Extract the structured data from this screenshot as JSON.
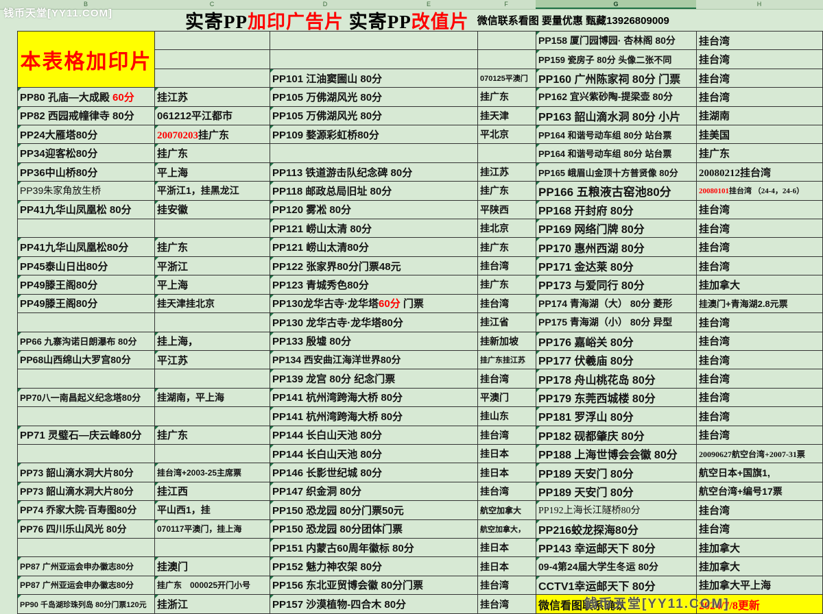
{
  "watermark": "钱币天堂[YY11.COM]",
  "header": {
    "columns": [
      "B",
      "C",
      "D",
      "E",
      "F",
      "G",
      "H"
    ],
    "selected": "G"
  },
  "title": {
    "parts": [
      {
        "t": "实寄PP"
      },
      {
        "t": "加印广告片",
        "c": "red"
      },
      {
        "t": "  实寄PP"
      },
      {
        "t": "改值片",
        "c": "red"
      }
    ],
    "subtitle": "微信联系看图  要量优惠  甄藏13926809009"
  },
  "table": {
    "rows": [
      {
        "b": {
          "t": "本表格加印片",
          "cls": "merged-title",
          "rs": 3
        },
        "c": {},
        "de": {},
        "f": {},
        "g": {
          "t": "PP158 厦门园博园· 杏林阁 80分",
          "cls": "f14"
        },
        "h": {
          "t": "挂台湾"
        }
      },
      {
        "b": "skip",
        "c": {},
        "de": {},
        "f": {},
        "g": {
          "t": "PP159 瓷房子 80分 头像二张不同",
          "cls": "f13"
        },
        "h": {
          "t": "挂台湾"
        }
      },
      {
        "b": "skip",
        "c": {},
        "de": {
          "t": "PP101 江油窦圌山 80分"
        },
        "f": {
          "t": "070125平澳门",
          "cls": "f11"
        },
        "g": {
          "t": "PP160 广州陈家祠 80分 门票"
        },
        "h": {
          "t": "挂台湾"
        }
      },
      {
        "b": {
          "p": [
            {
              "t": "PP80 孔庙—大成殿 "
            },
            {
              "t": "60分",
              "c": "red"
            }
          ]
        },
        "c": {
          "t": "挂江苏"
        },
        "de": {
          "t": "PP105 万佛湖风光  80分"
        },
        "f": {
          "t": "挂广东"
        },
        "g": {
          "t": "PP162 宜兴紫砂陶-提梁壶 80分",
          "cls": "f14"
        },
        "h": {
          "t": "挂台湾"
        }
      },
      {
        "b": {
          "t": "PP82 西园戒幢律寺 80分"
        },
        "c": {
          "t": "061212平江都市"
        },
        "de": {
          "t": "PP105 万佛湖风光 80分"
        },
        "f": {
          "t": "挂天津"
        },
        "g": {
          "t": "PP163 韶山滴水洞 80分 小片"
        },
        "h": {
          "t": "挂湖南"
        }
      },
      {
        "b": {
          "t": "PP24大雁塔80分"
        },
        "c": {
          "p": [
            {
              "t": "20070203",
              "c": "red"
            },
            {
              "t": "挂广东"
            }
          ],
          "cls": "serif"
        },
        "de": {
          "t": "PP109 婺源彩虹桥80分"
        },
        "f": {
          "t": "平北京"
        },
        "g": {
          "t": "PP164 和谐号动车组 80分 站台票",
          "cls": "f13"
        },
        "h": {
          "t": "挂美国"
        }
      },
      {
        "b": {
          "t": "PP34迎客松80分"
        },
        "c": {
          "t": "挂广东"
        },
        "de": {},
        "f": {},
        "g": {
          "t": "PP164 和谐号动车组 80分 站台票",
          "cls": "f13"
        },
        "h": {
          "t": "挂广东"
        }
      },
      {
        "b": {
          "t": "PP36中山桥80分"
        },
        "c": {
          "t": "平上海"
        },
        "de": {
          "t": "PP113 铁道游击队纪念碑 80分"
        },
        "f": {
          "t": "挂江苏"
        },
        "g": {
          "t": "PP165 峨眉山金顶十方普贤像 80分",
          "cls": "f13"
        },
        "h": {
          "t": "20080212挂台湾",
          "cls": "serif f15"
        }
      },
      {
        "b": {
          "t": "PP39朱家角放生桥",
          "cls": "f14 normal"
        },
        "c": {
          "t": "平浙江1，挂黑龙江",
          "cls": "f14"
        },
        "de": {
          "t": "PP118 邮政总局旧址 80分"
        },
        "f": {
          "t": "挂广东"
        },
        "g": {
          "t": "PP166 五粮液古窑池80分",
          "cls": "f17"
        },
        "h": {
          "p": [
            {
              "t": "20080101",
              "c": "red"
            },
            {
              "t": "挂台湾 （24-4，24-6）"
            }
          ],
          "cls": "f11 serif"
        }
      },
      {
        "b": {
          "t": "PP41九华山凤凰松 80分"
        },
        "c": {
          "t": "挂安徽"
        },
        "de": {
          "t": "PP120 雾凇 80分"
        },
        "f": {
          "t": "平陕西"
        },
        "g": {
          "t": "PP168 开封府 80分"
        },
        "h": {
          "t": "挂台湾"
        }
      },
      {
        "b": {},
        "c": {},
        "de": {
          "t": "PP121 崂山太清 80分"
        },
        "f": {
          "t": "挂北京"
        },
        "g": {
          "t": "PP169 网络门牌 80分"
        },
        "h": {
          "t": "挂台湾"
        }
      },
      {
        "b": {
          "t": "PP41九华山凤凰松80分"
        },
        "c": {
          "t": "挂广东"
        },
        "de": {
          "t": "PP121 崂山太清80分"
        },
        "f": {
          "t": "挂广东"
        },
        "g": {
          "t": "PP170 惠州西湖 80分"
        },
        "h": {
          "t": "挂台湾"
        }
      },
      {
        "b": {
          "t": "PP45泰山日出80分"
        },
        "c": {
          "t": "平浙江"
        },
        "de": {
          "t": "PP122 张家界80分门票48元"
        },
        "f": {
          "t": "挂台湾"
        },
        "g": {
          "t": "PP171 金达莱 80分"
        },
        "h": {
          "t": "挂台湾"
        }
      },
      {
        "b": {
          "t": "PP49滕王阁80分"
        },
        "c": {
          "t": "平上海"
        },
        "de": {
          "t": "PP123 青城秀色80分"
        },
        "f": {
          "t": "挂广东"
        },
        "g": {
          "t": "PP173 与爱同行 80分"
        },
        "h": {
          "t": "挂加拿大"
        }
      },
      {
        "b": {
          "t": "PP49滕王阁80分"
        },
        "c": {
          "t": "挂天津挂北京",
          "cls": "f14"
        },
        "de": {
          "p": [
            {
              "t": "PP130龙华古寺·龙华塔"
            },
            {
              "t": "60分",
              "c": "red"
            },
            {
              "t": " 门票"
            }
          ]
        },
        "f": {
          "t": "挂台湾"
        },
        "g": {
          "t": "PP174 青海湖（大） 80分 菱形",
          "cls": "f14"
        },
        "h": {
          "t": "挂澳门+青海湖2.8元票",
          "cls": "f13"
        }
      },
      {
        "b": {},
        "c": {},
        "de": {
          "t": "PP130 龙华古寺·龙华塔80分"
        },
        "f": {
          "t": "挂江省"
        },
        "g": {
          "t": "PP175 青海湖（小） 80分 异型",
          "cls": "f14"
        },
        "h": {
          "t": "挂台湾"
        }
      },
      {
        "b": {
          "t": "PP66 九寨沟诺日朗瀑布 80分",
          "cls": "f13"
        },
        "c": {
          "t": "挂上海，"
        },
        "de": {
          "t": "PP133 殷墟 80分"
        },
        "f": {
          "t": "挂新加坡"
        },
        "g": {
          "t": "PP176 嘉峪关 80分"
        },
        "h": {
          "t": "挂台湾"
        }
      },
      {
        "b": {
          "t": "PP68山西绵山大罗宫80分",
          "cls": "f14"
        },
        "c": {
          "t": "平江苏"
        },
        "de": {
          "t": "PP134 西安曲江海洋世界80分",
          "cls": "f14"
        },
        "f": {
          "t": "挂广东挂江苏",
          "cls": "f11"
        },
        "g": {
          "t": "PP177 伏羲庙 80分"
        },
        "h": {
          "t": "挂台湾"
        }
      },
      {
        "b": {},
        "c": {},
        "de": {
          "t": "PP139 龙宫 80分 纪念门票"
        },
        "f": {
          "t": "挂台湾"
        },
        "g": {
          "t": "PP178 舟山桃花岛 80分"
        },
        "h": {
          "t": "挂台湾"
        }
      },
      {
        "b": {
          "t": "PP70八一南昌起义纪念塔80分",
          "cls": "f13"
        },
        "c": {
          "t": "挂湖南，平上海",
          "cls": "f14"
        },
        "de": {
          "t": "PP141 杭州湾跨海大桥 80分"
        },
        "f": {
          "t": "平澳门"
        },
        "g": {
          "t": "PP179 东莞西城楼 80分"
        },
        "h": {
          "t": "挂台湾"
        }
      },
      {
        "b": {},
        "c": {},
        "de": {
          "t": "PP141 杭州湾跨海大桥 80分"
        },
        "f": {
          "t": "挂山东"
        },
        "g": {
          "t": "PP181 罗浮山 80分"
        },
        "h": {
          "t": "挂台湾"
        }
      },
      {
        "b": {
          "t": "PP71 灵璧石—庆云峰80分"
        },
        "c": {
          "t": "挂广东"
        },
        "de": {
          "t": "PP144 长白山天池 80分"
        },
        "f": {
          "t": "挂台湾"
        },
        "g": {
          "t": "PP182 砚都肇庆 80分"
        },
        "h": {
          "t": "挂台湾"
        }
      },
      {
        "b": {},
        "c": {},
        "de": {
          "t": "PP144 长白山天池 80分"
        },
        "f": {
          "t": "挂日本"
        },
        "g": {
          "t": "PP188 上海世博会会徽 80分"
        },
        "h": {
          "t": "20090627航空台湾+2007-31票",
          "cls": "f12 serif"
        }
      },
      {
        "b": {
          "t": "PP73 韶山滴水洞大片80分",
          "cls": "f14"
        },
        "c": {
          "t": "挂台湾+2003-25主席票",
          "cls": "f12"
        },
        "de": {
          "t": "PP146 长影世纪城 80分"
        },
        "f": {
          "t": "挂日本"
        },
        "g": {
          "t": "PP189 天安门 80分"
        },
        "h": {
          "t": "航空日本+国旗1,",
          "cls": "f14"
        }
      },
      {
        "b": {
          "t": "PP73 韶山滴水洞大片80分",
          "cls": "f14"
        },
        "c": {
          "t": "挂江西"
        },
        "de": {
          "t": "PP147 织金洞 80分"
        },
        "f": {
          "t": "挂台湾"
        },
        "g": {
          "t": "PP189 天安门 80分"
        },
        "h": {
          "t": "航空台湾+编号17票",
          "cls": "f14"
        }
      },
      {
        "b": {
          "t": "PP74 乔家大院·百寿图80分",
          "cls": "f14"
        },
        "c": {
          "t": "平山西1，挂",
          "cls": "f14"
        },
        "de": {
          "t": "PP150 恐龙园 80分门票50元"
        },
        "f": {
          "t": "航空加拿大",
          "cls": "f12"
        },
        "g": {
          "t": "PP192上海长江隧桥80分",
          "cls": "f14 normal serif"
        },
        "h": {
          "t": "挂台湾"
        }
      },
      {
        "b": {
          "t": "PP76 四川乐山风光 80分",
          "cls": "f14"
        },
        "c": {
          "t": "070117平澳门，挂上海",
          "cls": "f12"
        },
        "de": {
          "t": "PP150 恐龙园 80分团体门票"
        },
        "f": {
          "t": "航空加拿大，",
          "cls": "f11"
        },
        "g": {
          "t": "PP216蛟龙探海80分"
        },
        "h": {
          "t": "挂台湾"
        }
      },
      {
        "b": {},
        "c": {},
        "de": {
          "t": "PP151 内蒙古60周年徽标 80分"
        },
        "f": {
          "t": "挂日本"
        },
        "g": {
          "t": "PP143 幸运邮天下 80分"
        },
        "h": {
          "t": "挂加拿大"
        }
      },
      {
        "b": {
          "t": "PP87 广州亚运会申办徽志80分",
          "cls": "f12"
        },
        "c": {
          "t": "挂澳门"
        },
        "de": {
          "t": "PP152 魅力神农架 80分"
        },
        "f": {
          "t": "挂日本"
        },
        "g": {
          "t": "09-4第24届大学生冬运 80分",
          "cls": "f14"
        },
        "h": {
          "t": "挂加拿大"
        }
      },
      {
        "b": {
          "t": "PP87 广州亚运会申办徽志80分",
          "cls": "f12"
        },
        "c": {
          "t": "挂广东　000025开门小号",
          "cls": "f12"
        },
        "de": {
          "t": "PP156 东北亚贸博会徽 80分门票"
        },
        "f": {
          "t": "挂台湾"
        },
        "g": {
          "t": "CCTV1幸运邮天下 80分"
        },
        "h": {
          "t": "挂加拿大平上海"
        }
      },
      {
        "b": {
          "t": "PP90 千岛湖珍珠列岛 80分门票120元",
          "cls": "f11"
        },
        "c": {
          "t": "挂浙江"
        },
        "de": {
          "t": "PP157 沙漠植物-四合木 80分"
        },
        "f": {
          "t": "挂台湾"
        },
        "g": {
          "t": "微信看图联系确认",
          "cls": "yellow"
        },
        "h": {
          "t": "2024/7/8更新",
          "cls": "yellow red-text serif f16"
        }
      }
    ]
  }
}
